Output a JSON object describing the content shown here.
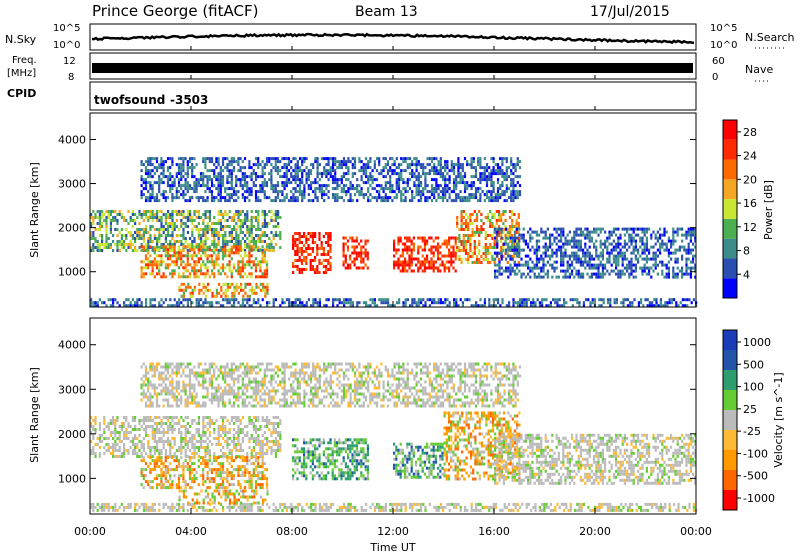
{
  "header": {
    "station": "Prince George (fitACF)",
    "beam": "Beam 13",
    "date": "17/Jul/2015"
  },
  "noise_panel": {
    "left_label": "N.Sky",
    "left_ticks": [
      "10^5",
      "10^0"
    ],
    "right_ticks": [
      "10^5",
      "10^0"
    ],
    "right_label": "N.Search"
  },
  "freq_panel": {
    "left_label_1": "Freq.",
    "left_label_2": "[MHz]",
    "left_ticks": [
      "12",
      "8"
    ],
    "right_ticks": [
      "60",
      "0"
    ],
    "right_label": "Nave"
  },
  "cpid_panel": {
    "left_label": "CPID",
    "program": "twofsound",
    "cpid": "-3503"
  },
  "colors": {
    "noise_line": "#000000",
    "freq_bar": "#000000",
    "power_scale": [
      "#0000ff",
      "#2a4fb0",
      "#3c8c8c",
      "#4caf50",
      "#c8e632",
      "#f5a623",
      "#ff6a00",
      "#ff2a00",
      "#ff0000"
    ],
    "velocity_scale": [
      "#ff0000",
      "#ff6600",
      "#ff9900",
      "#ffbb33",
      "#bbbbbb",
      "#66cc33",
      "#2e9e6e",
      "#2255aa",
      "#1b3cb8"
    ]
  },
  "chart_data": [
    {
      "type": "heatmap",
      "title": "",
      "xlabel": "",
      "ylabel": "Slant Range [km]",
      "x_ticks": [
        "00:00",
        "04:00",
        "08:00",
        "12:00",
        "16:00",
        "20:00",
        "00:00"
      ],
      "y_ticks": [
        "1000",
        "2000",
        "3000",
        "4000"
      ],
      "ylim": [
        200,
        4600
      ],
      "colorbar": {
        "label": "Power [dB]",
        "ticks": [
          "4",
          "8",
          "12",
          "16",
          "20",
          "24",
          "28"
        ],
        "range": [
          0,
          30
        ]
      },
      "echo_regions": [
        {
          "t_start": 0.0,
          "t_end": 24.0,
          "r_min": 250,
          "r_max": 400,
          "level": "low"
        },
        {
          "t_start": 0.0,
          "t_end": 7.5,
          "r_min": 1500,
          "r_max": 2400,
          "level": "mid"
        },
        {
          "t_start": 2.0,
          "t_end": 7.0,
          "r_min": 900,
          "r_max": 1600,
          "level": "high"
        },
        {
          "t_start": 3.5,
          "t_end": 7.0,
          "r_min": 450,
          "r_max": 750,
          "level": "high"
        },
        {
          "t_start": 8.0,
          "t_end": 9.5,
          "r_min": 1000,
          "r_max": 1900,
          "level": "peak"
        },
        {
          "t_start": 10.0,
          "t_end": 11.0,
          "r_min": 1100,
          "r_max": 1800,
          "level": "peak"
        },
        {
          "t_start": 12.0,
          "t_end": 14.5,
          "r_min": 1000,
          "r_max": 1800,
          "level": "peak"
        },
        {
          "t_start": 14.5,
          "t_end": 17.0,
          "r_min": 1200,
          "r_max": 2400,
          "level": "high"
        },
        {
          "t_start": 16.0,
          "t_end": 24.0,
          "r_min": 900,
          "r_max": 2000,
          "level": "low"
        },
        {
          "t_start": 2.0,
          "t_end": 17.0,
          "r_min": 2600,
          "r_max": 3600,
          "level": "low"
        }
      ]
    },
    {
      "type": "heatmap",
      "title": "",
      "xlabel": "Time UT",
      "ylabel": "Slant Range [km]",
      "x_ticks": [
        "00:00",
        "04:00",
        "08:00",
        "12:00",
        "16:00",
        "20:00",
        "00:00"
      ],
      "y_ticks": [
        "1000",
        "2000",
        "3000",
        "4000"
      ],
      "ylim": [
        200,
        4600
      ],
      "colorbar": {
        "label": "Velocity [m s^-1]",
        "ticks": [
          "1000",
          "500",
          "100",
          "25",
          "-25",
          "-100",
          "-500",
          "-1000"
        ],
        "range": [
          -1000,
          1000
        ]
      },
      "echo_regions": [
        {
          "t_start": 0.0,
          "t_end": 24.0,
          "r_min": 250,
          "r_max": 450,
          "level": "ground"
        },
        {
          "t_start": 0.0,
          "t_end": 7.5,
          "r_min": 1500,
          "r_max": 2400,
          "level": "ground"
        },
        {
          "t_start": 2.0,
          "t_end": 7.0,
          "r_min": 800,
          "r_max": 1500,
          "level": "away"
        },
        {
          "t_start": 3.5,
          "t_end": 7.0,
          "r_min": 450,
          "r_max": 750,
          "level": "mixed"
        },
        {
          "t_start": 8.0,
          "t_end": 11.0,
          "r_min": 1000,
          "r_max": 1900,
          "level": "toward"
        },
        {
          "t_start": 12.0,
          "t_end": 14.0,
          "r_min": 1000,
          "r_max": 1800,
          "level": "toward"
        },
        {
          "t_start": 14.0,
          "t_end": 17.0,
          "r_min": 1000,
          "r_max": 2500,
          "level": "away"
        },
        {
          "t_start": 16.0,
          "t_end": 24.0,
          "r_min": 900,
          "r_max": 2000,
          "level": "ground"
        },
        {
          "t_start": 2.0,
          "t_end": 17.0,
          "r_min": 2600,
          "r_max": 3600,
          "level": "ground"
        }
      ]
    }
  ]
}
